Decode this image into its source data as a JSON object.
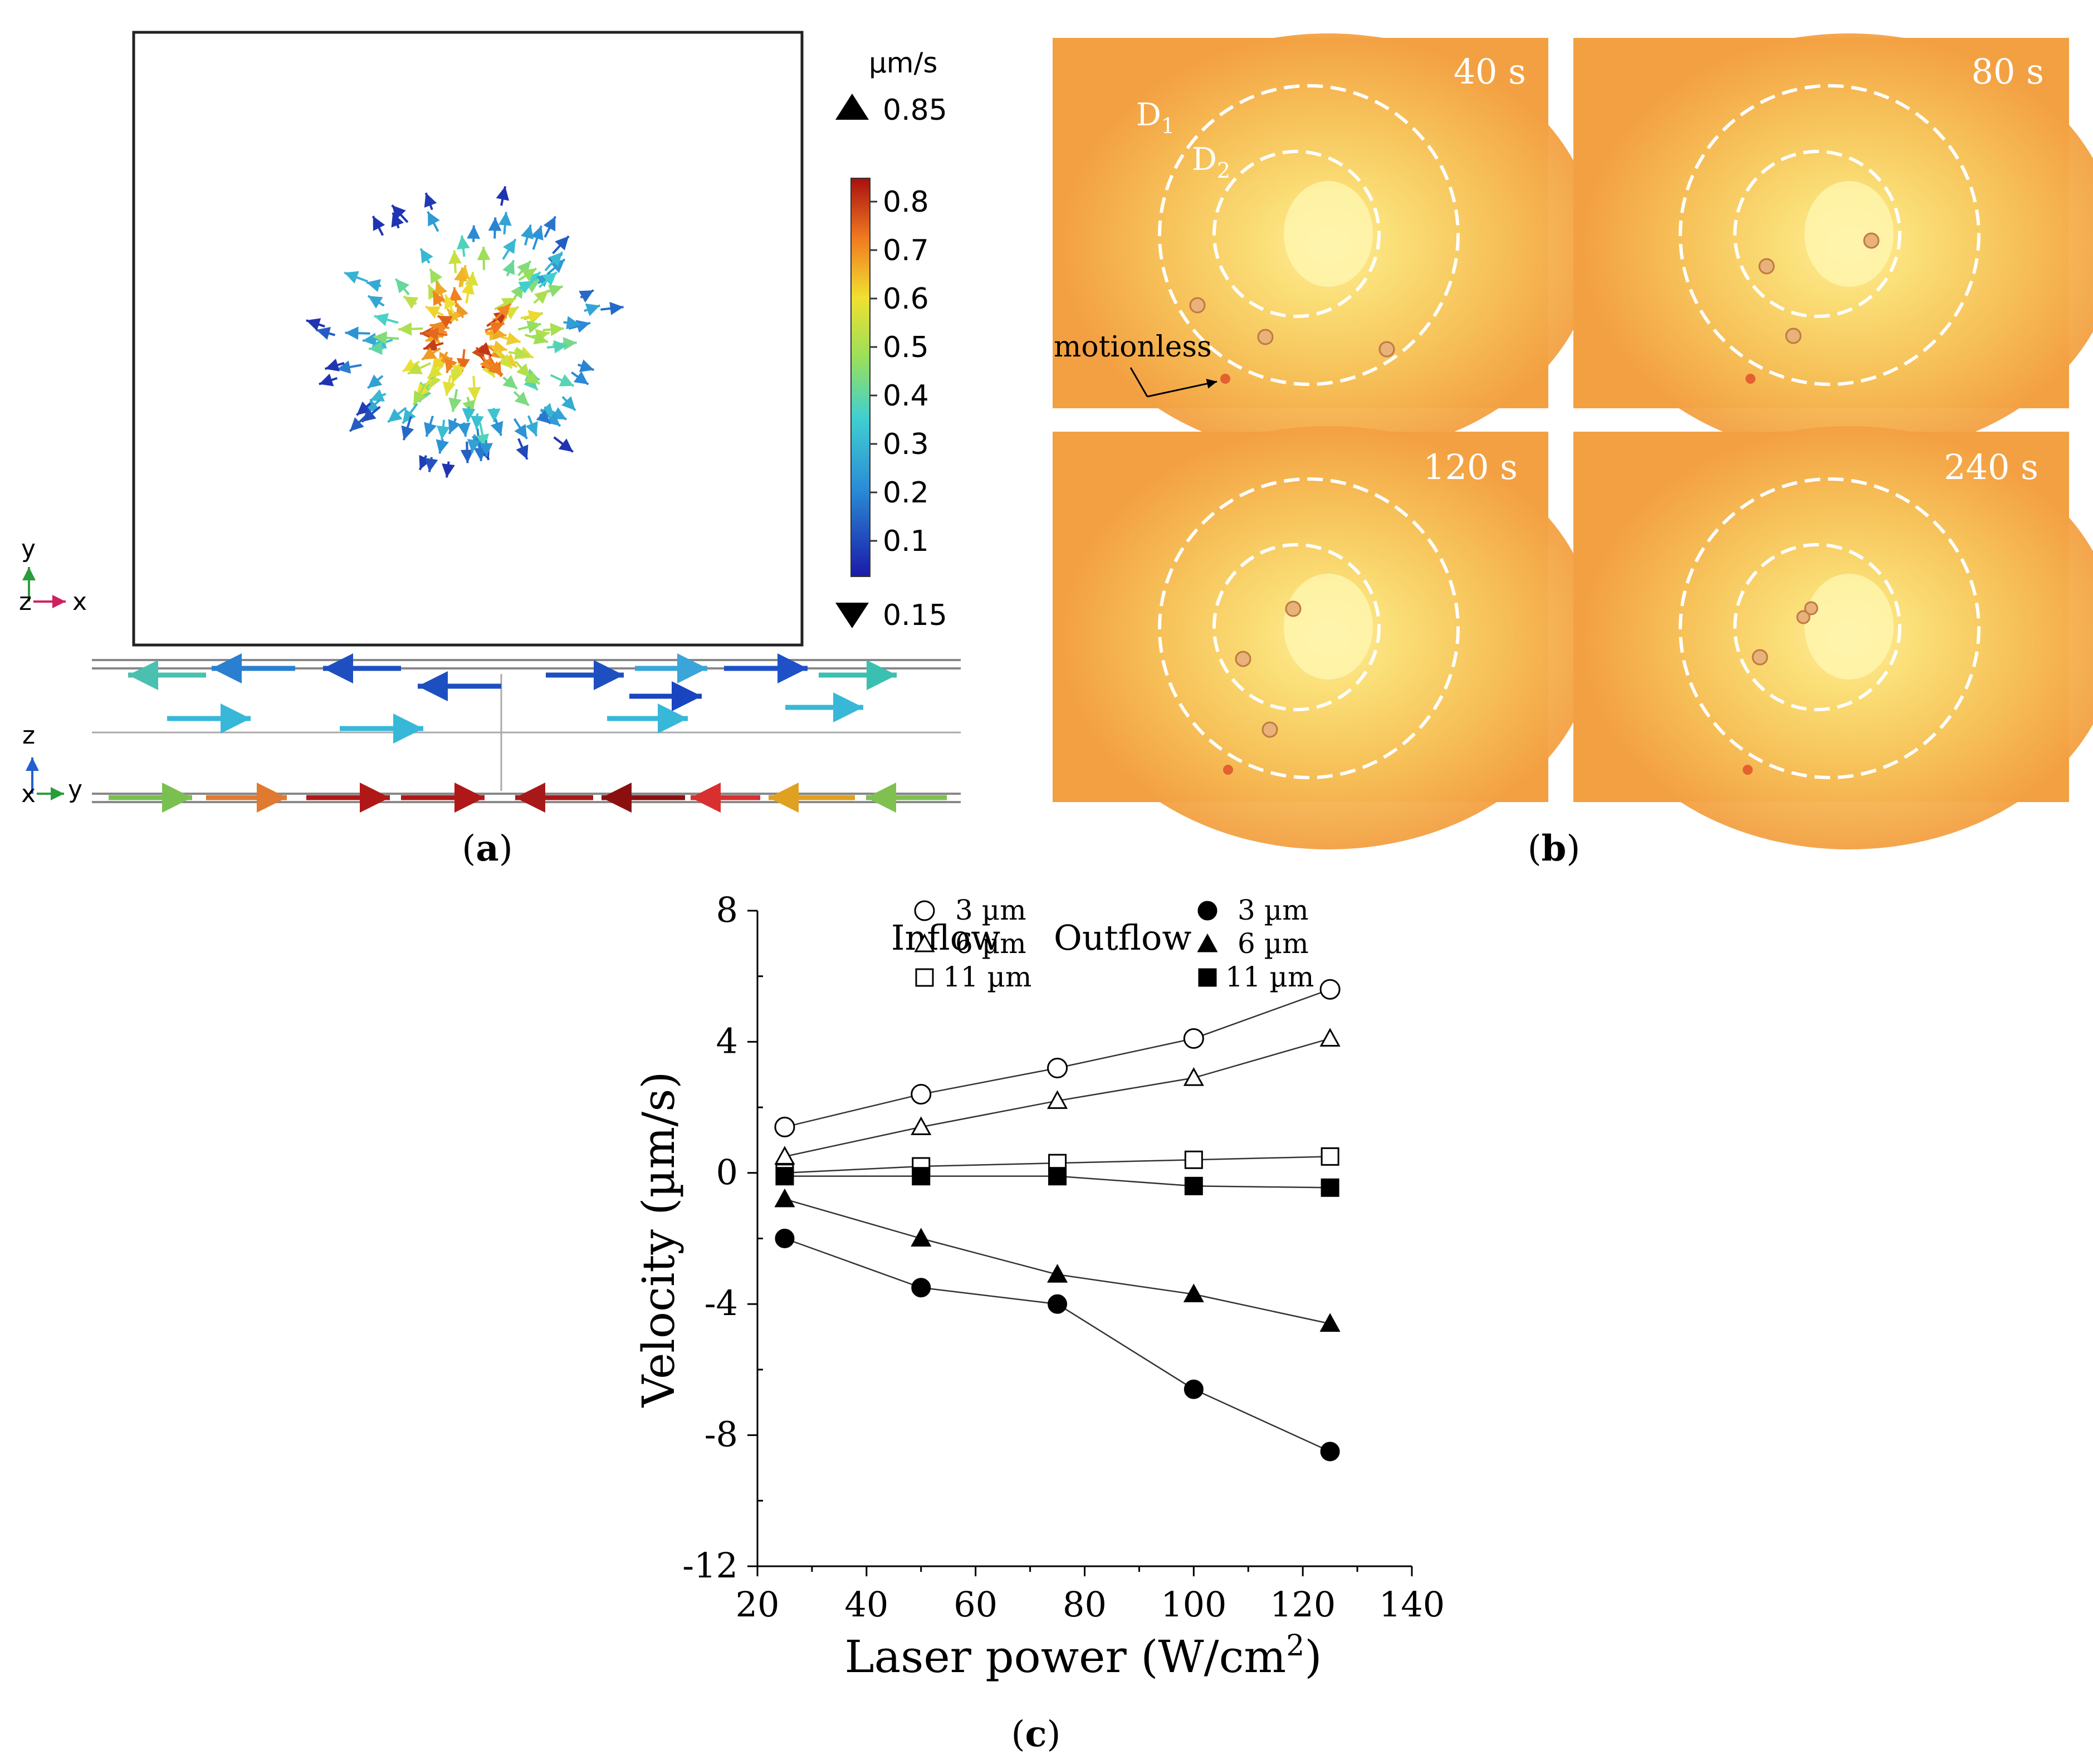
{
  "panel_a": {
    "label_a": "(",
    "label_letter": "a",
    "label_c": ")",
    "colorbar": {
      "unit": "µm/s",
      "max_marker": "0.85",
      "min_marker": "0.15",
      "ticks": [
        "0.8",
        "0.7",
        "0.6",
        "0.5",
        "0.4",
        "0.3",
        "0.2",
        "0.1"
      ]
    },
    "axes_top": {
      "y": "y",
      "z": "z",
      "x": "x"
    },
    "axes_bottom": {
      "z": "z",
      "x": "x",
      "y": "y"
    }
  },
  "panel_b": {
    "label_a": "(",
    "label_letter": "b",
    "label_c": ")",
    "frames": [
      {
        "time": "40 s"
      },
      {
        "time": "80 s"
      },
      {
        "time": "120 s"
      },
      {
        "time": "240 s"
      }
    ],
    "d1": "D",
    "d1_sub": "1",
    "d2": "D",
    "d2_sub": "2",
    "annotation": "motionless"
  },
  "panel_c": {
    "label_a": "(",
    "label_letter": "c",
    "label_c": ")"
  },
  "chart_data": {
    "type": "line",
    "title": "",
    "xlabel": "Laser power (W/cm",
    "xlabel_sup": "2",
    "xlabel_end": ")",
    "ylabel": "Velocity (µm/s)",
    "xlim": [
      20,
      140
    ],
    "ylim": [
      -12,
      8
    ],
    "x_ticks": [
      "20",
      "40",
      "60",
      "80",
      "100",
      "120",
      "140"
    ],
    "y_ticks": [
      "8",
      "4",
      "0",
      "-4",
      "-8",
      "-12"
    ],
    "x_tick_values": [
      20,
      40,
      60,
      80,
      100,
      120,
      140
    ],
    "y_tick_values": [
      8,
      4,
      0,
      -4,
      -8,
      -12
    ],
    "legend_groups": {
      "inflow": "Inflow",
      "outflow": "Outflow"
    },
    "x": [
      25,
      50,
      75,
      100,
      125
    ],
    "series": [
      {
        "name": "3 µm",
        "group": "Inflow",
        "marker": "circle-open",
        "values": [
          1.4,
          2.4,
          3.2,
          4.1,
          5.6
        ]
      },
      {
        "name": "6 µm",
        "group": "Inflow",
        "marker": "triangle-open",
        "values": [
          0.5,
          1.4,
          2.2,
          2.9,
          4.1
        ]
      },
      {
        "name": "11 µm",
        "group": "Inflow",
        "marker": "square-open",
        "values": [
          0.0,
          0.2,
          0.3,
          0.4,
          0.5
        ]
      },
      {
        "name": "3 µm",
        "group": "Outflow",
        "marker": "circle-filled",
        "values": [
          -2.0,
          -3.5,
          -4.0,
          -6.6,
          -8.5
        ]
      },
      {
        "name": "6 µm",
        "group": "Outflow",
        "marker": "triangle-filled",
        "values": [
          -0.8,
          -2.0,
          -3.1,
          -3.7,
          -4.6
        ]
      },
      {
        "name": "11 µm",
        "group": "Outflow",
        "marker": "square-filled",
        "values": [
          -0.1,
          -0.1,
          -0.1,
          -0.4,
          -0.45
        ]
      }
    ]
  }
}
